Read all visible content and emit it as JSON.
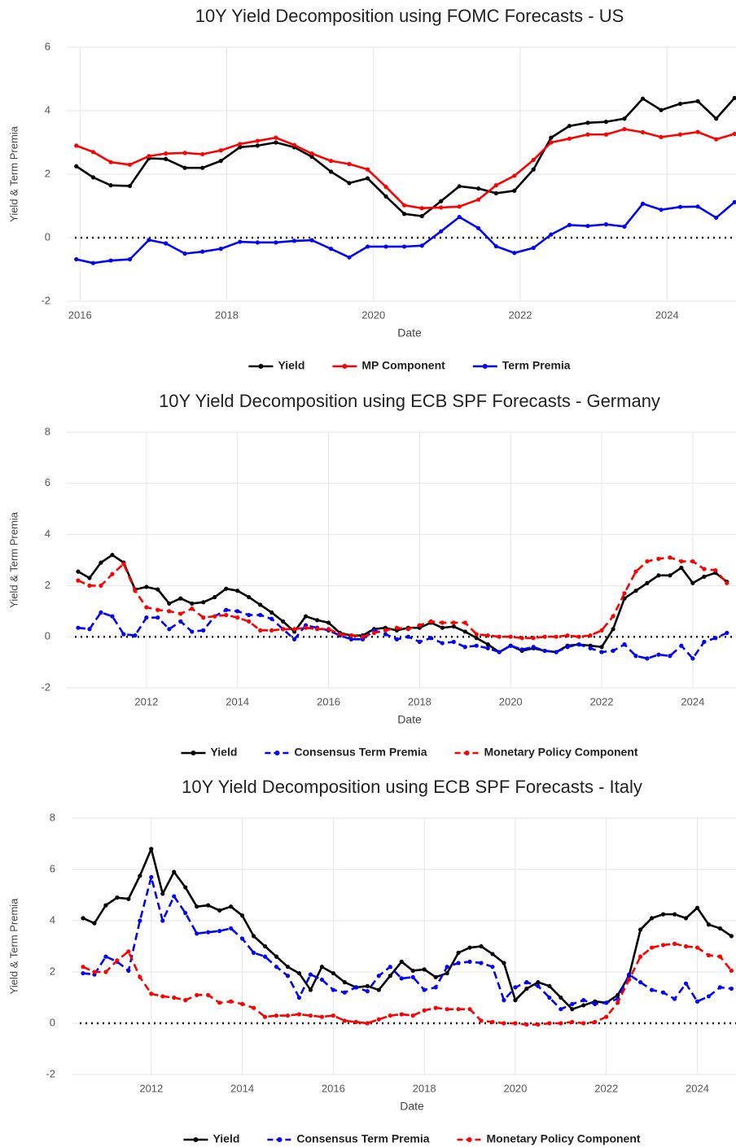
{
  "chart_data": [
    {
      "type": "line",
      "title": "10Y Yield Decomposition using FOMC Forecasts - US",
      "x_label": "Date",
      "y_label": "Yield & Term Premia",
      "xlim": [
        2015.82,
        2024.94
      ],
      "xticks": [
        2016,
        2018,
        2020,
        2022,
        2024
      ],
      "ylim": [
        -2,
        6
      ],
      "yticks": [
        -2,
        0,
        2,
        4,
        6
      ],
      "grid": true,
      "legend": "bottom",
      "hline": 0,
      "x": [
        2015.95,
        2016.18,
        2016.42,
        2016.68,
        2016.94,
        2017.17,
        2017.43,
        2017.67,
        2017.92,
        2018.18,
        2018.42,
        2018.67,
        2018.92,
        2019.16,
        2019.42,
        2019.67,
        2019.92,
        2020.17,
        2020.42,
        2020.66,
        2020.92,
        2021.17,
        2021.43,
        2021.67,
        2021.92,
        2022.18,
        2022.42,
        2022.67,
        2022.92,
        2023.17,
        2023.42,
        2023.67,
        2023.92,
        2024.18,
        2024.42,
        2024.67,
        2024.92
      ],
      "series": [
        {
          "name": "Yield",
          "color": "#000000",
          "dashed": false,
          "values": [
            2.25,
            1.9,
            1.65,
            1.63,
            2.5,
            2.48,
            2.2,
            2.2,
            2.42,
            2.85,
            2.9,
            3.0,
            2.85,
            2.55,
            2.08,
            1.72,
            1.87,
            1.3,
            0.75,
            0.68,
            1.15,
            1.62,
            1.55,
            1.4,
            1.48,
            2.15,
            3.15,
            3.52,
            3.62,
            3.65,
            3.75,
            4.38,
            4.02,
            4.22,
            4.3,
            3.75,
            4.4
          ]
        },
        {
          "name": "MP Component",
          "color": "#ff0000",
          "dashed": false,
          "values": [
            2.9,
            2.7,
            2.38,
            2.3,
            2.57,
            2.65,
            2.67,
            2.63,
            2.75,
            2.95,
            3.05,
            3.15,
            2.92,
            2.65,
            2.42,
            2.32,
            2.15,
            1.6,
            1.02,
            0.93,
            0.95,
            0.98,
            1.2,
            1.65,
            1.95,
            2.45,
            3.0,
            3.12,
            3.25,
            3.25,
            3.42,
            3.32,
            3.17,
            3.25,
            3.33,
            3.1,
            3.27
          ]
        },
        {
          "name": "Term Premia",
          "color": "#0000ff",
          "dashed": false,
          "values": [
            -0.68,
            -0.8,
            -0.72,
            -0.68,
            -0.07,
            -0.18,
            -0.5,
            -0.44,
            -0.35,
            -0.13,
            -0.15,
            -0.15,
            -0.1,
            -0.08,
            -0.35,
            -0.62,
            -0.28,
            -0.28,
            -0.28,
            -0.25,
            0.2,
            0.65,
            0.3,
            -0.27,
            -0.48,
            -0.32,
            0.1,
            0.4,
            0.37,
            0.42,
            0.35,
            1.07,
            0.88,
            0.97,
            0.98,
            0.63,
            1.12
          ]
        }
      ]
    },
    {
      "type": "line",
      "title": "10Y Yield Decomposition using ECB SPF Forecasts - Germany",
      "x_label": "Date",
      "y_label": "Yield & Term Premia",
      "xlim": [
        2010.25,
        2024.95
      ],
      "xticks": [
        2012,
        2014,
        2016,
        2018,
        2020,
        2022,
        2024
      ],
      "ylim": [
        -2,
        8
      ],
      "yticks": [
        -2,
        0,
        2,
        4,
        6,
        8
      ],
      "grid": true,
      "legend": "bottom",
      "hline": 0,
      "x": [
        2010.5,
        2010.75,
        2011,
        2011.25,
        2011.5,
        2011.75,
        2012,
        2012.25,
        2012.5,
        2012.75,
        2013,
        2013.25,
        2013.5,
        2013.75,
        2014,
        2014.25,
        2014.5,
        2014.75,
        2015,
        2015.25,
        2015.5,
        2015.75,
        2016,
        2016.25,
        2016.5,
        2016.75,
        2017,
        2017.25,
        2017.5,
        2017.75,
        2018,
        2018.25,
        2018.5,
        2018.75,
        2019,
        2019.25,
        2019.5,
        2019.75,
        2020,
        2020.25,
        2020.5,
        2020.75,
        2021,
        2021.25,
        2021.5,
        2021.75,
        2022,
        2022.25,
        2022.5,
        2022.75,
        2023,
        2023.25,
        2023.5,
        2023.75,
        2024,
        2024.25,
        2024.5,
        2024.75
      ],
      "series": [
        {
          "name": "Yield",
          "color": "#000000",
          "dashed": false,
          "values": [
            2.55,
            2.3,
            2.9,
            3.2,
            2.9,
            1.85,
            1.95,
            1.85,
            1.3,
            1.5,
            1.3,
            1.35,
            1.55,
            1.88,
            1.8,
            1.55,
            1.25,
            0.95,
            0.6,
            0.2,
            0.8,
            0.65,
            0.55,
            0.15,
            0.05,
            0.05,
            0.3,
            0.35,
            0.25,
            0.35,
            0.35,
            0.55,
            0.35,
            0.4,
            0.2,
            -0.05,
            -0.3,
            -0.6,
            -0.35,
            -0.55,
            -0.45,
            -0.55,
            -0.6,
            -0.35,
            -0.3,
            -0.35,
            -0.4,
            0.3,
            1.5,
            1.8,
            2.1,
            2.4,
            2.4,
            2.7,
            2.1,
            2.35,
            2.5,
            2.15
          ]
        },
        {
          "name": "Consensus Term Premia",
          "color": "#0000ff",
          "dashed": true,
          "values": [
            0.35,
            0.3,
            0.95,
            0.8,
            0.1,
            0.05,
            0.75,
            0.75,
            0.3,
            0.6,
            0.2,
            0.25,
            0.8,
            1.05,
            1.0,
            0.85,
            0.85,
            0.7,
            0.3,
            -0.1,
            0.45,
            0.35,
            0.25,
            0.05,
            -0.1,
            -0.1,
            0.25,
            0.1,
            -0.1,
            0.0,
            -0.2,
            -0.05,
            -0.25,
            -0.2,
            -0.4,
            -0.35,
            -0.45,
            -0.6,
            -0.35,
            -0.5,
            -0.4,
            -0.55,
            -0.6,
            -0.4,
            -0.3,
            -0.45,
            -0.6,
            -0.55,
            -0.3,
            -0.75,
            -0.85,
            -0.7,
            -0.75,
            -0.35,
            -0.85,
            -0.2,
            -0.05,
            0.15
          ]
        },
        {
          "name": "Monetary Policy Component",
          "color": "#ff0000",
          "dashed": true,
          "values": [
            2.2,
            2.0,
            2.0,
            2.45,
            2.85,
            1.8,
            1.15,
            1.05,
            1.0,
            0.9,
            1.1,
            0.75,
            0.8,
            0.85,
            0.75,
            0.6,
            0.25,
            0.25,
            0.3,
            0.3,
            0.35,
            0.3,
            0.3,
            0.1,
            0.05,
            0.0,
            0.15,
            0.25,
            0.35,
            0.3,
            0.45,
            0.6,
            0.55,
            0.55,
            0.55,
            0.1,
            0.05,
            0.0,
            0.0,
            -0.05,
            -0.05,
            0.0,
            0.0,
            0.05,
            0.0,
            0.05,
            0.25,
            0.8,
            1.7,
            2.55,
            2.95,
            3.05,
            3.1,
            2.95,
            2.95,
            2.65,
            2.6,
            2.1
          ]
        }
      ]
    },
    {
      "type": "line",
      "title": "10Y Yield Decomposition using ECB SPF Forecasts - Italy",
      "x_label": "Date",
      "y_label": "Yield & Term Premia",
      "xlim": [
        2010.25,
        2024.85
      ],
      "xticks": [
        2012,
        2014,
        2016,
        2018,
        2020,
        2022,
        2024
      ],
      "ylim": [
        -2,
        8
      ],
      "yticks": [
        -2,
        0,
        2,
        4,
        6,
        8
      ],
      "grid": true,
      "legend": "bottom",
      "hline": 0,
      "x": [
        2010.5,
        2010.75,
        2011,
        2011.25,
        2011.5,
        2011.75,
        2012,
        2012.25,
        2012.5,
        2012.75,
        2013,
        2013.25,
        2013.5,
        2013.75,
        2014,
        2014.25,
        2014.5,
        2014.75,
        2015,
        2015.25,
        2015.5,
        2015.75,
        2016,
        2016.25,
        2016.5,
        2016.75,
        2017,
        2017.25,
        2017.5,
        2017.75,
        2018,
        2018.25,
        2018.5,
        2018.75,
        2019,
        2019.25,
        2019.5,
        2019.75,
        2020,
        2020.25,
        2020.5,
        2020.75,
        2021,
        2021.25,
        2021.5,
        2021.75,
        2022,
        2022.25,
        2022.5,
        2022.75,
        2023,
        2023.25,
        2023.5,
        2023.75,
        2024,
        2024.25,
        2024.5,
        2024.75
      ],
      "series": [
        {
          "name": "Yield",
          "color": "#000000",
          "dashed": false,
          "values": [
            4.1,
            3.9,
            4.6,
            4.9,
            4.85,
            5.75,
            6.8,
            5.05,
            5.9,
            5.3,
            4.55,
            4.6,
            4.4,
            4.55,
            4.2,
            3.4,
            3.0,
            2.6,
            2.2,
            1.95,
            1.3,
            2.2,
            1.95,
            1.6,
            1.4,
            1.45,
            1.3,
            1.85,
            2.4,
            2.05,
            2.1,
            1.8,
            1.95,
            2.75,
            2.95,
            3.0,
            2.7,
            2.35,
            0.9,
            1.35,
            1.6,
            1.45,
            1.0,
            0.55,
            0.7,
            0.85,
            0.8,
            1.1,
            1.85,
            3.65,
            4.1,
            4.25,
            4.25,
            4.1,
            4.5,
            3.85,
            3.7,
            3.4
          ]
        },
        {
          "name": "Consensus Term Premia",
          "color": "#0000ff",
          "dashed": true,
          "values": [
            1.95,
            1.9,
            2.6,
            2.4,
            2.05,
            4.0,
            5.7,
            4.0,
            4.95,
            4.3,
            3.5,
            3.55,
            3.6,
            3.7,
            3.3,
            2.75,
            2.6,
            2.2,
            1.85,
            1.0,
            1.9,
            1.7,
            1.3,
            1.2,
            1.4,
            1.25,
            1.85,
            2.2,
            1.75,
            1.8,
            1.3,
            1.4,
            2.2,
            2.35,
            2.4,
            2.35,
            2.2,
            0.9,
            1.4,
            1.6,
            1.45,
            1.0,
            0.55,
            0.75,
            0.9,
            0.75,
            0.8,
            0.95,
            1.9,
            1.6,
            1.3,
            1.2,
            0.95,
            1.55,
            0.85,
            1.05,
            1.4,
            1.35
          ]
        },
        {
          "name": "Monetary Policy Component",
          "color": "#ff0000",
          "dashed": true,
          "values": [
            2.2,
            2.0,
            2.0,
            2.45,
            2.8,
            1.8,
            1.15,
            1.05,
            1.0,
            0.9,
            1.1,
            1.1,
            0.8,
            0.85,
            0.75,
            0.6,
            0.25,
            0.3,
            0.3,
            0.35,
            0.3,
            0.25,
            0.3,
            0.1,
            0.05,
            0.0,
            0.15,
            0.3,
            0.35,
            0.3,
            0.5,
            0.6,
            0.55,
            0.55,
            0.55,
            0.1,
            0.05,
            0.0,
            0.0,
            -0.05,
            -0.05,
            0.0,
            0.0,
            0.05,
            0.0,
            0.05,
            0.25,
            0.8,
            1.7,
            2.6,
            2.95,
            3.05,
            3.1,
            3.0,
            2.95,
            2.65,
            2.6,
            2.05
          ]
        }
      ]
    }
  ]
}
